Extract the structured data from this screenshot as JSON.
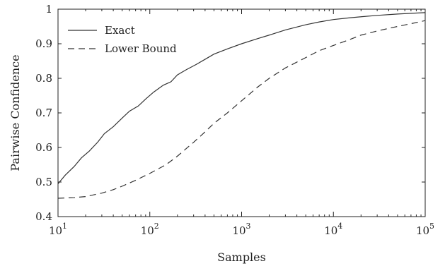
{
  "chart_data": {
    "type": "line",
    "title": "",
    "xlabel": "Samples",
    "ylabel": "Pairwise Confidence",
    "xscale": "log",
    "xlim": [
      10,
      100000
    ],
    "ylim": [
      0.4,
      1.0
    ],
    "grid": false,
    "legend_position": "top-left",
    "x_ticks": [
      {
        "base": "10",
        "exp": "1",
        "value": 10
      },
      {
        "base": "10",
        "exp": "2",
        "value": 100
      },
      {
        "base": "10",
        "exp": "3",
        "value": 1000
      },
      {
        "base": "10",
        "exp": "4",
        "value": 10000
      },
      {
        "base": "10",
        "exp": "5",
        "value": 100000
      }
    ],
    "y_ticks": [
      {
        "label": "0.4",
        "value": 0.4
      },
      {
        "label": "0.5",
        "value": 0.5
      },
      {
        "label": "0.6",
        "value": 0.6
      },
      {
        "label": "0.7",
        "value": 0.7
      },
      {
        "label": "0.8",
        "value": 0.8
      },
      {
        "label": "0.9",
        "value": 0.9
      },
      {
        "label": "1",
        "value": 1.0
      }
    ],
    "series": [
      {
        "name": "Exact",
        "style": "solid",
        "color": "#333333",
        "points": [
          [
            10,
            0.495
          ],
          [
            12,
            0.52
          ],
          [
            15,
            0.545
          ],
          [
            18,
            0.57
          ],
          [
            22,
            0.59
          ],
          [
            27,
            0.615
          ],
          [
            32,
            0.64
          ],
          [
            40,
            0.66
          ],
          [
            50,
            0.685
          ],
          [
            60,
            0.705
          ],
          [
            75,
            0.72
          ],
          [
            90,
            0.74
          ],
          [
            110,
            0.76
          ],
          [
            140,
            0.78
          ],
          [
            170,
            0.79
          ],
          [
            200,
            0.81
          ],
          [
            250,
            0.825
          ],
          [
            320,
            0.84
          ],
          [
            400,
            0.855
          ],
          [
            500,
            0.87
          ],
          [
            700,
            0.885
          ],
          [
            1000,
            0.9
          ],
          [
            1500,
            0.915
          ],
          [
            2000,
            0.925
          ],
          [
            3000,
            0.94
          ],
          [
            5000,
            0.955
          ],
          [
            7000,
            0.963
          ],
          [
            10000,
            0.97
          ],
          [
            15000,
            0.975
          ],
          [
            20000,
            0.978
          ],
          [
            30000,
            0.982
          ],
          [
            50000,
            0.986
          ],
          [
            70000,
            0.988
          ],
          [
            100000,
            0.99
          ]
        ]
      },
      {
        "name": "Lower Bound",
        "style": "dashed",
        "color": "#333333",
        "points": [
          [
            10,
            0.453
          ],
          [
            15,
            0.455
          ],
          [
            20,
            0.458
          ],
          [
            30,
            0.468
          ],
          [
            40,
            0.478
          ],
          [
            50,
            0.488
          ],
          [
            70,
            0.505
          ],
          [
            100,
            0.525
          ],
          [
            150,
            0.55
          ],
          [
            200,
            0.575
          ],
          [
            300,
            0.615
          ],
          [
            400,
            0.645
          ],
          [
            500,
            0.67
          ],
          [
            700,
            0.7
          ],
          [
            1000,
            0.735
          ],
          [
            1500,
            0.775
          ],
          [
            2000,
            0.8
          ],
          [
            3000,
            0.83
          ],
          [
            5000,
            0.86
          ],
          [
            7000,
            0.88
          ],
          [
            10000,
            0.895
          ],
          [
            15000,
            0.912
          ],
          [
            20000,
            0.925
          ],
          [
            30000,
            0.937
          ],
          [
            50000,
            0.95
          ],
          [
            70000,
            0.958
          ],
          [
            100000,
            0.967
          ]
        ]
      }
    ]
  }
}
